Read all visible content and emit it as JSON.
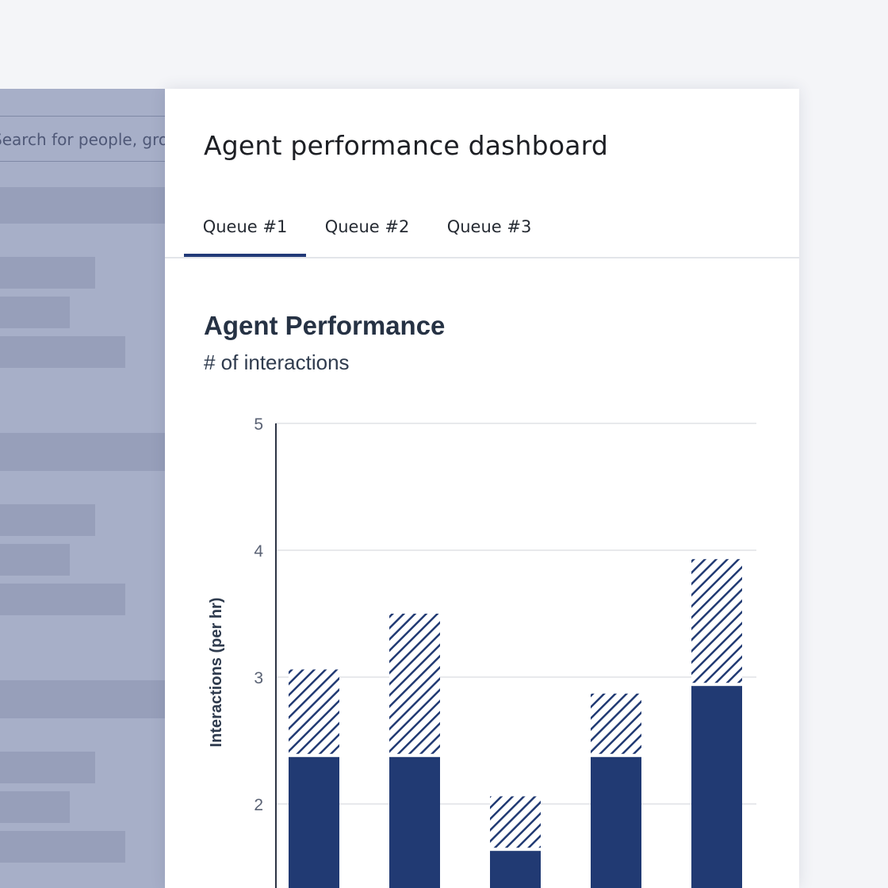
{
  "background_app": {
    "search_placeholder": "Search for people, groups and locations"
  },
  "panel": {
    "title": "Agent performance dashboard",
    "tabs": [
      {
        "label": "Queue #1",
        "active": true
      },
      {
        "label": "Queue #2",
        "active": false
      },
      {
        "label": "Queue #3",
        "active": false
      }
    ]
  },
  "colors": {
    "accent": "#223a78",
    "bar_solid": "#213a73",
    "gridline": "#e0e2e6",
    "overlay_bg": "#a7afc8"
  },
  "chart_data": {
    "type": "bar",
    "stacked": true,
    "title": "Agent Performance",
    "subtitle": "# of interactions",
    "ylabel": "Interactions (per hr)",
    "xlabel": "",
    "ylim_visible": [
      1.3,
      5
    ],
    "y_ticks": [
      2,
      3,
      4,
      5
    ],
    "grid": true,
    "series": [
      {
        "style": "solid",
        "values": [
          2.37,
          2.37,
          1.63,
          2.37,
          2.93
        ]
      },
      {
        "style": "hatched",
        "values": [
          0.69,
          1.13,
          0.43,
          0.5,
          1.0
        ]
      }
    ]
  }
}
